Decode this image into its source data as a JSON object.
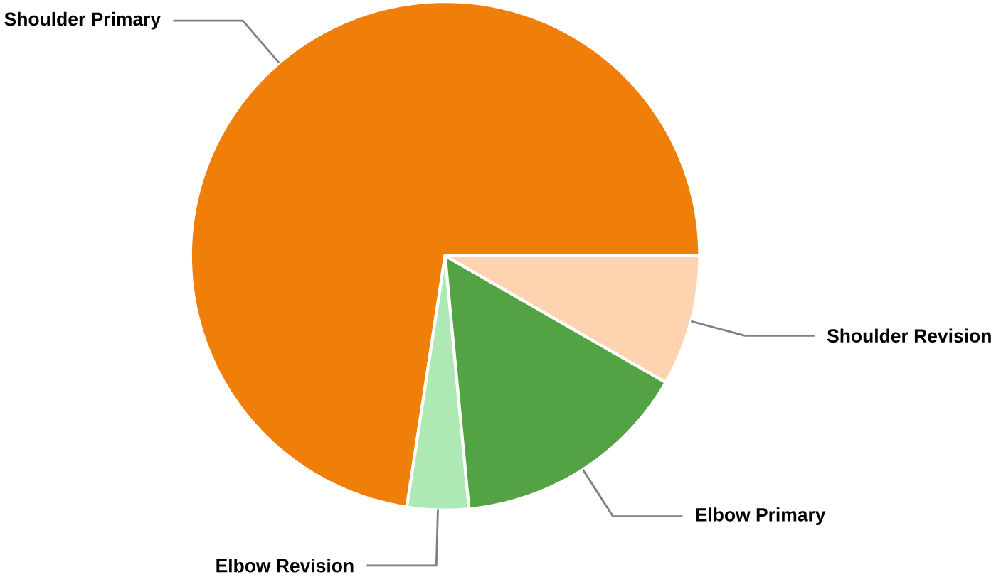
{
  "chart_data": {
    "type": "pie",
    "categories": [
      "Shoulder Primary",
      "Elbow Revision",
      "Elbow Primary",
      "Shoulder Revision"
    ],
    "values": [
      72.6,
      3.9,
      15.2,
      8.3
    ],
    "colors": [
      "#f07f09",
      "#aee8b4",
      "#53a244",
      "#fdd3b0"
    ]
  }
}
